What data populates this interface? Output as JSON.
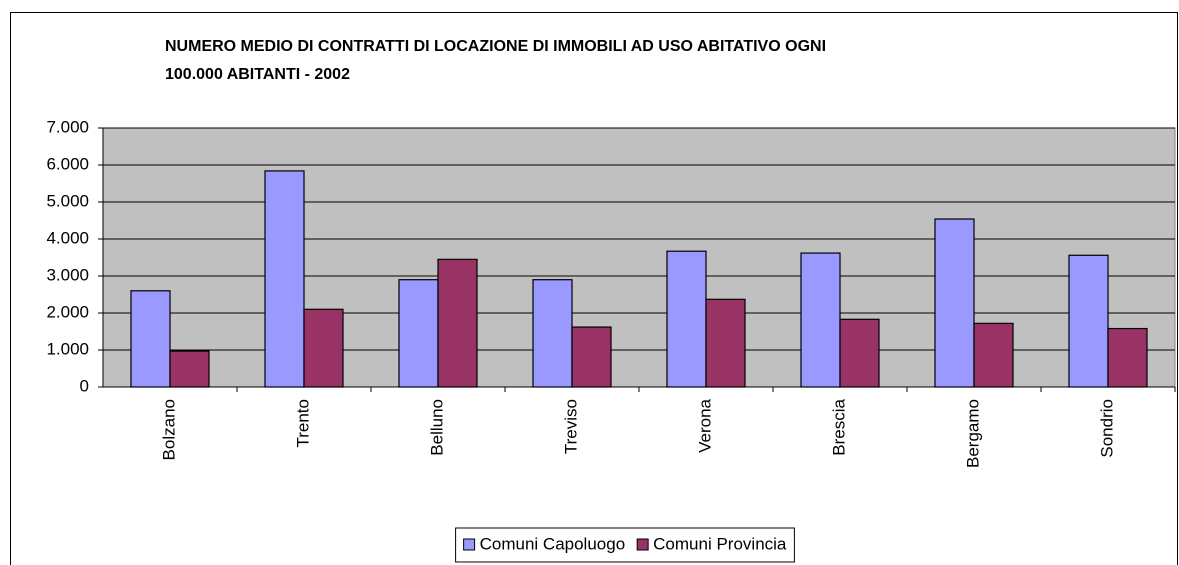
{
  "chart_data": {
    "type": "bar",
    "title": [
      "NUMERO MEDIO DI CONTRATTI DI LOCAZIONE DI IMMOBILI AD USO ABITATIVO OGNI",
      "100.000 ABITANTI - 2002"
    ],
    "categories": [
      "Bolzano",
      "Trento",
      "Belluno",
      "Treviso",
      "Verona",
      "Brescia",
      "Bergamo",
      "Sondrio"
    ],
    "series": [
      {
        "name": "Comuni Capoluogo",
        "color": "#9999ff",
        "values": [
          2600,
          5840,
          2900,
          2900,
          3670,
          3620,
          4540,
          3560
        ]
      },
      {
        "name": "Comuni Provincia",
        "color": "#993366",
        "values": [
          970,
          2100,
          3450,
          1620,
          2370,
          1830,
          1720,
          1580
        ]
      }
    ],
    "ylim": [
      0,
      7000
    ],
    "yticks": [
      0,
      {
        "value": 1000,
        "label": "1.000"
      },
      {
        "value": 2000,
        "label": "2.000"
      },
      {
        "value": 3000,
        "label": "3.000"
      },
      {
        "value": 4000,
        "label": "4.000"
      },
      {
        "value": 5000,
        "label": "5.000"
      },
      {
        "value": 6000,
        "label": "6.000"
      },
      {
        "value": 7000,
        "label": "7.000"
      }
    ],
    "grid": true,
    "legend": "bottom"
  }
}
